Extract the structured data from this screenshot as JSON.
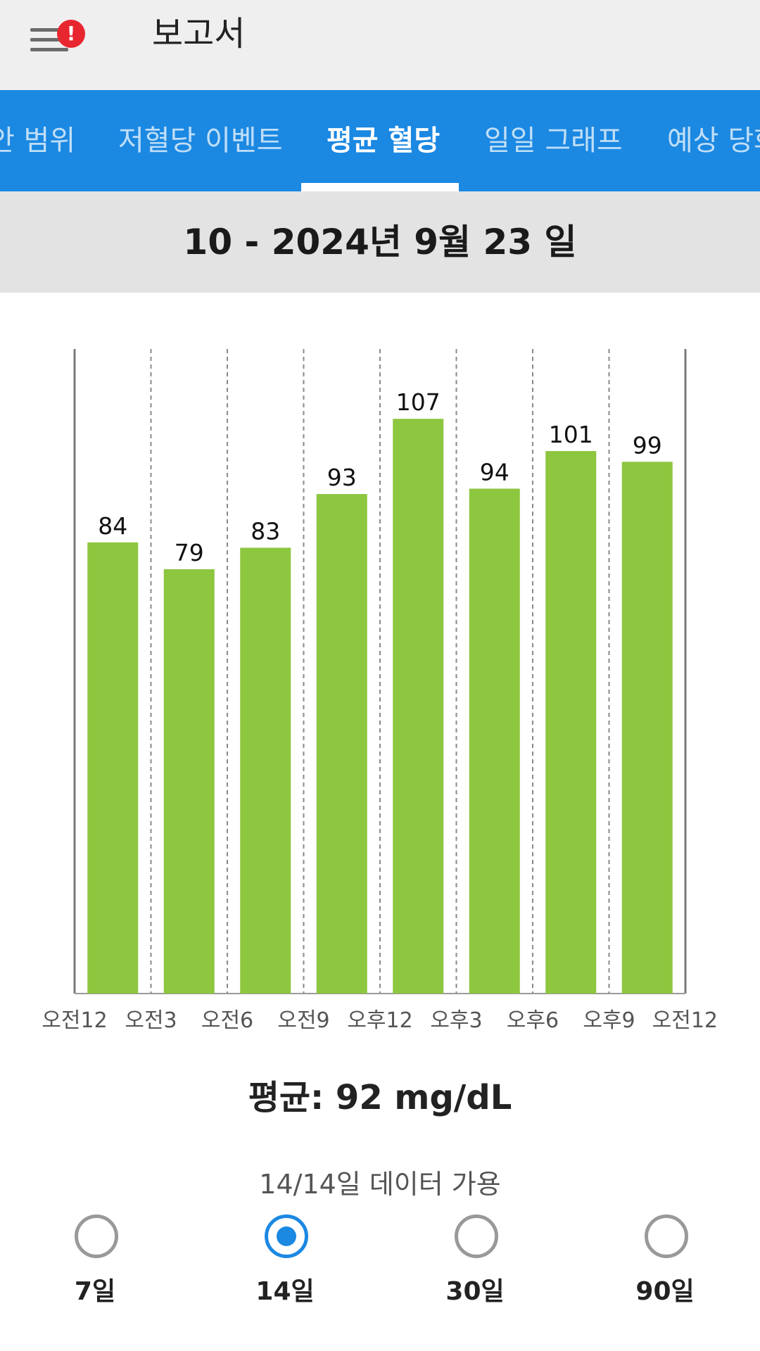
{
  "header": {
    "menu_icon": "hamburger-menu-icon",
    "alert_badge": "!",
    "alert_color": "#e8262f",
    "title": "보고서"
  },
  "tabs": [
    {
      "label": "안 범위"
    },
    {
      "label": "저혈당 이벤트"
    },
    {
      "label": "평균 혈당",
      "active": true
    },
    {
      "label": "일일 그래프"
    },
    {
      "label": "예상 당화"
    }
  ],
  "accent_color": "#1b88e2",
  "date_range": "10 - 2024년 9월 23 일",
  "chart_data": {
    "type": "bar",
    "categories": [
      "오전12-오전3",
      "오전3-오전6",
      "오전6-오전9",
      "오전9-오후12",
      "오후12-오후3",
      "오후3-오후6",
      "오후6-오후9",
      "오후9-오전12"
    ],
    "values": [
      84,
      79,
      83,
      93,
      107,
      94,
      101,
      99
    ],
    "x_tick_labels": [
      "오전12",
      "오전3",
      "오전6",
      "오전9",
      "오후12",
      "오후3",
      "오후6",
      "오후9",
      "오전12"
    ],
    "bar_color": "#8dc63f",
    "ylim": [
      0,
      120
    ],
    "grid": "vertical dashed",
    "title": "",
    "xlabel": "",
    "ylabel": ""
  },
  "average_text": "평균: 92 mg/dL",
  "data_available": "14/14일 데이터 가용",
  "period_options": [
    {
      "label": "7일",
      "selected": false
    },
    {
      "label": "14일",
      "selected": true
    },
    {
      "label": "30일",
      "selected": false
    },
    {
      "label": "90일",
      "selected": false
    }
  ]
}
